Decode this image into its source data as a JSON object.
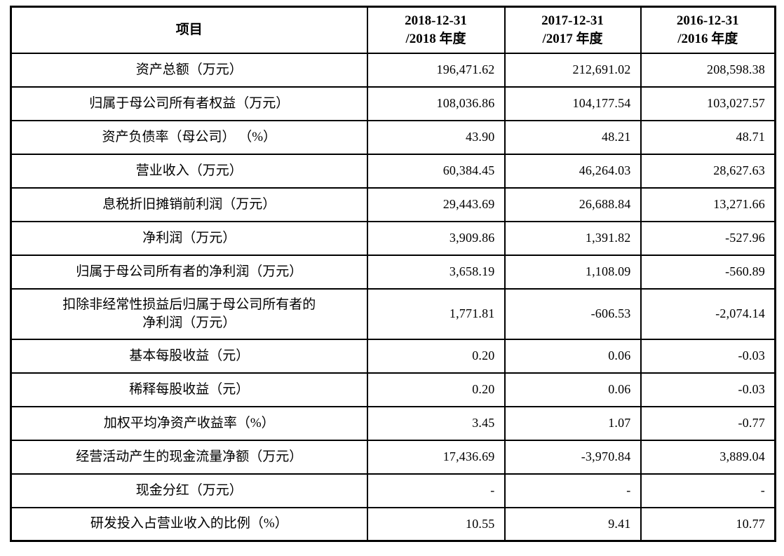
{
  "table": {
    "headers": {
      "item": "项目",
      "col2018": "2018-12-31\n/2018 年度",
      "col2017": "2017-12-31\n/2017 年度",
      "col2016": "2016-12-31\n/2016 年度"
    },
    "rows": [
      {
        "label": "资产总额（万元）",
        "values": [
          "196,471.62",
          "212,691.02",
          "208,598.38"
        ]
      },
      {
        "label": "归属于母公司所有者权益（万元）",
        "values": [
          "108,036.86",
          "104,177.54",
          "103,027.57"
        ]
      },
      {
        "label": "资产负债率（母公司） （%）",
        "values": [
          "43.90",
          "48.21",
          "48.71"
        ]
      },
      {
        "label": "营业收入（万元）",
        "values": [
          "60,384.45",
          "46,264.03",
          "28,627.63"
        ]
      },
      {
        "label": "息税折旧摊销前利润（万元）",
        "values": [
          "29,443.69",
          "26,688.84",
          "13,271.66"
        ]
      },
      {
        "label": "净利润（万元）",
        "values": [
          "3,909.86",
          "1,391.82",
          "-527.96"
        ]
      },
      {
        "label": "归属于母公司所有者的净利润（万元）",
        "values": [
          "3,658.19",
          "1,108.09",
          "-560.89"
        ]
      },
      {
        "label": "扣除非经常性损益后归属于母公司所有者的\n净利润（万元）",
        "values": [
          "1,771.81",
          "-606.53",
          "-2,074.14"
        ]
      },
      {
        "label": "基本每股收益（元）",
        "values": [
          "0.20",
          "0.06",
          "-0.03"
        ]
      },
      {
        "label": "稀释每股收益（元）",
        "values": [
          "0.20",
          "0.06",
          "-0.03"
        ]
      },
      {
        "label": "加权平均净资产收益率（%）",
        "values": [
          "3.45",
          "1.07",
          "-0.77"
        ]
      },
      {
        "label": "经营活动产生的现金流量净额（万元）",
        "values": [
          "17,436.69",
          "-3,970.84",
          "3,889.04"
        ]
      },
      {
        "label": "现金分红（万元）",
        "values": [
          "-",
          "-",
          "-"
        ]
      },
      {
        "label": "研发投入占营业收入的比例（%）",
        "values": [
          "10.55",
          "9.41",
          "10.77"
        ]
      }
    ]
  }
}
